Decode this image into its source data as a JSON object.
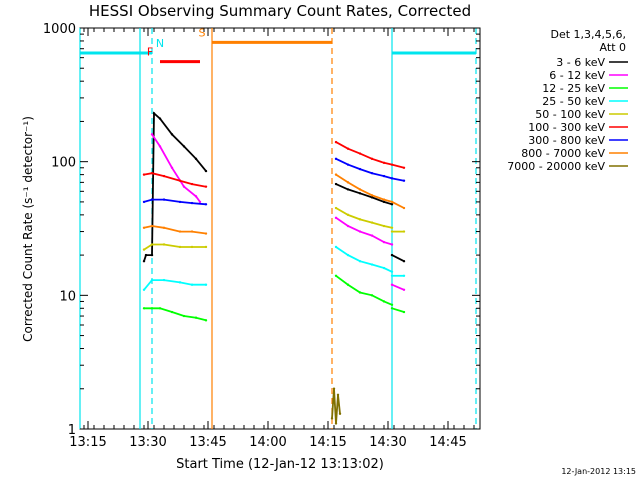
{
  "chart_data": {
    "type": "line",
    "title": "HESSI Observing Summary Count Rates, Corrected",
    "xlabel": "Start Time (12-Jan-12 13:13:02)",
    "ylabel": "Corrected Count Rate (s⁻¹ detector⁻¹)",
    "y_scale": "log",
    "ylim": [
      1,
      1000
    ],
    "xlim": [
      "13:13",
      "14:53"
    ],
    "x_ticks": [
      "13:15",
      "13:30",
      "13:45",
      "14:00",
      "14:15",
      "14:30",
      "14:45"
    ],
    "y_ticks": [
      "1",
      "10",
      "100",
      "1000"
    ],
    "legend_title": [
      "Det 1,3,4,5,6,",
      "Att 0"
    ],
    "legend_position": "top-right outside",
    "timestamp": "12-Jan-2012 13:15",
    "series": [
      {
        "name": "3 - 6 keV",
        "color": "#000000",
        "segments": [
          {
            "x": [
              "13:29",
              "13:29:30",
              "13:31",
              "13:31:30",
              "13:33",
              "13:36",
              "13:39",
              "13:42",
              "13:44:30"
            ],
            "y": [
              18,
              20,
              20,
              230,
              210,
              160,
              130,
              105,
              85
            ]
          },
          {
            "x": [
              "14:17",
              "14:20",
              "14:23",
              "14:26",
              "14:29",
              "14:31"
            ],
            "y": [
              68,
              62,
              58,
              54,
              50,
              48
            ]
          },
          {
            "x": [
              "14:31",
              "14:34"
            ],
            "y": [
              20,
              18
            ]
          }
        ]
      },
      {
        "name": "6 - 12 keV",
        "color": "#ff00ff",
        "segments": [
          {
            "x": [
              "13:31",
              "13:33",
              "13:36",
              "13:39",
              "13:42",
              "13:43"
            ],
            "y": [
              160,
              130,
              90,
              65,
              55,
              50
            ]
          },
          {
            "x": [
              "14:17",
              "14:20",
              "14:23",
              "14:26",
              "14:29",
              "14:31"
            ],
            "y": [
              38,
              33,
              30,
              28,
              25,
              24
            ]
          },
          {
            "x": [
              "14:31",
              "14:34"
            ],
            "y": [
              12,
              11
            ]
          }
        ]
      },
      {
        "name": "12 - 25 keV",
        "color": "#00ff00",
        "segments": [
          {
            "x": [
              "13:29",
              "13:31",
              "13:33",
              "13:36",
              "13:39",
              "13:42",
              "13:44:30"
            ],
            "y": [
              8,
              8,
              8,
              7.5,
              7,
              6.8,
              6.5
            ]
          },
          {
            "x": [
              "14:17",
              "14:20",
              "14:23",
              "14:26",
              "14:29",
              "14:31"
            ],
            "y": [
              14,
              12,
              10.5,
              10,
              9,
              8.5
            ]
          },
          {
            "x": [
              "14:31",
              "14:34"
            ],
            "y": [
              8,
              7.5
            ]
          }
        ]
      },
      {
        "name": "25 - 50 keV",
        "color": "#00ffff",
        "segments": [
          {
            "x": [
              "13:29",
              "13:31",
              "13:34",
              "13:38",
              "13:41",
              "13:44:30"
            ],
            "y": [
              11,
              13,
              13,
              12.5,
              12,
              12
            ]
          },
          {
            "x": [
              "14:17",
              "14:20",
              "14:23",
              "14:26",
              "14:29",
              "14:31"
            ],
            "y": [
              23,
              20,
              18,
              17,
              16,
              15
            ]
          },
          {
            "x": [
              "14:31",
              "14:34"
            ],
            "y": [
              14,
              14
            ]
          }
        ]
      },
      {
        "name": "50 - 100 keV",
        "color": "#cccc00",
        "segments": [
          {
            "x": [
              "13:29",
              "13:31",
              "13:34",
              "13:38",
              "13:41",
              "13:44:30"
            ],
            "y": [
              22,
              24,
              24,
              23,
              23,
              23
            ]
          },
          {
            "x": [
              "14:17",
              "14:20",
              "14:23",
              "14:26",
              "14:29",
              "14:31"
            ],
            "y": [
              45,
              40,
              37,
              35,
              33,
              32
            ]
          },
          {
            "x": [
              "14:31",
              "14:34"
            ],
            "y": [
              30,
              30
            ]
          }
        ]
      },
      {
        "name": "100 - 300 keV",
        "color": "#ff0000",
        "segments": [
          {
            "x": [
              "13:29",
              "13:31",
              "13:34",
              "13:38",
              "13:41",
              "13:44:30"
            ],
            "y": [
              80,
              82,
              78,
              72,
              68,
              65
            ]
          },
          {
            "x": [
              "14:17",
              "14:20",
              "14:23",
              "14:26",
              "14:29",
              "14:31",
              "14:34"
            ],
            "y": [
              140,
              125,
              115,
              105,
              98,
              95,
              90
            ]
          }
        ]
      },
      {
        "name": "300 - 800 keV",
        "color": "#0000ff",
        "segments": [
          {
            "x": [
              "13:29",
              "13:31",
              "13:34",
              "13:38",
              "13:41",
              "13:44:30"
            ],
            "y": [
              50,
              52,
              52,
              50,
              49,
              48
            ]
          },
          {
            "x": [
              "14:17",
              "14:20",
              "14:23",
              "14:26",
              "14:29",
              "14:31",
              "14:34"
            ],
            "y": [
              105,
              95,
              88,
              82,
              78,
              75,
              72
            ]
          }
        ]
      },
      {
        "name": "800 - 7000 keV",
        "color": "#ff8000",
        "segments": [
          {
            "x": [
              "13:29",
              "13:31",
              "13:34",
              "13:38",
              "13:41",
              "13:44:30"
            ],
            "y": [
              32,
              33,
              32,
              30,
              30,
              29
            ]
          },
          {
            "x": [
              "14:17",
              "14:20",
              "14:23",
              "14:26",
              "14:29",
              "14:31",
              "14:34"
            ],
            "y": [
              80,
              70,
              62,
              56,
              52,
              50,
              45
            ]
          }
        ]
      },
      {
        "name": "7000 - 20000 keV",
        "color": "#807000",
        "segments": [
          {
            "x": [
              "14:16",
              "14:16:30",
              "14:17",
              "14:17:30",
              "14:18"
            ],
            "y": [
              1.2,
              2,
              1.1,
              1.8,
              1.3
            ]
          }
        ]
      }
    ],
    "flag_bars": [
      {
        "label": "",
        "color": "#00e5ee",
        "x": [
          "13:13",
          "13:31"
        ],
        "level": 650
      },
      {
        "label": "N",
        "color": "#00e5ee",
        "x": [
          "13:31",
          "13:31"
        ],
        "level": 650
      },
      {
        "label": "F",
        "color": "#ff0000",
        "x": [
          "13:33",
          "13:43"
        ],
        "level": 560
      },
      {
        "label": "S",
        "color": "#ff8000",
        "x": [
          "13:46",
          "14:16"
        ],
        "level": 780
      },
      {
        "label": "",
        "color": "#00e5ee",
        "x": [
          "14:31",
          "14:52"
        ],
        "level": 650
      }
    ],
    "vertical_markers": [
      {
        "x": "13:31",
        "color": "#00e5ee",
        "style": "dashed"
      },
      {
        "x": "13:46",
        "color": "#ff8000",
        "style": "solid"
      },
      {
        "x": "14:16",
        "color": "#ff8000",
        "style": "dashed"
      },
      {
        "x": "14:31",
        "color": "#00e5ee",
        "style": "solid"
      },
      {
        "x": "14:52",
        "color": "#00e5ee",
        "style": "dashed"
      },
      {
        "x": "13:13",
        "color": "#00e5ee",
        "style": "solid"
      },
      {
        "x": "13:28",
        "color": "#00e5ee",
        "style": "solid"
      }
    ]
  }
}
